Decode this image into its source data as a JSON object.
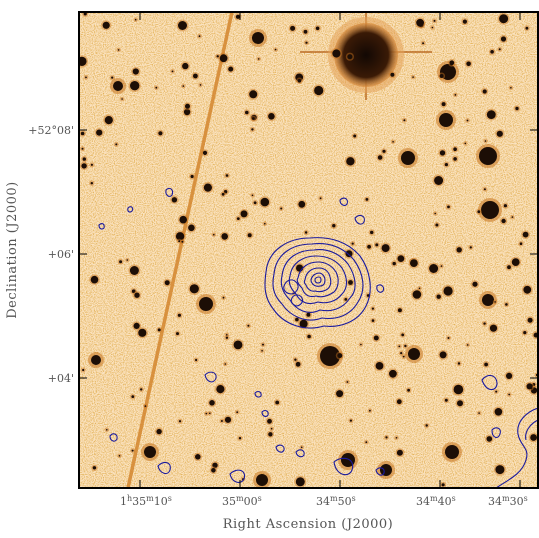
{
  "figure": {
    "xaxis_title": "Right Ascension (J2000)",
    "yaxis_title": "Declination (J2000)",
    "x_tick_labels": [
      {
        "h": "1",
        "m": "35",
        "s": "10"
      },
      {
        "h": "",
        "m": "35",
        "s": "00"
      },
      {
        "h": "",
        "m": "34",
        "s": "50"
      },
      {
        "h": "",
        "m": "34",
        "s": "40"
      },
      {
        "h": "",
        "m": "34",
        "s": "30"
      }
    ],
    "y_tick_labels": [
      "+52°08'",
      "+06'",
      "+04'"
    ],
    "colors": {
      "background": "#fbe3c0",
      "star": "#1c0e06",
      "contour": "#1a1a9e",
      "frame": "#000000"
    }
  }
}
